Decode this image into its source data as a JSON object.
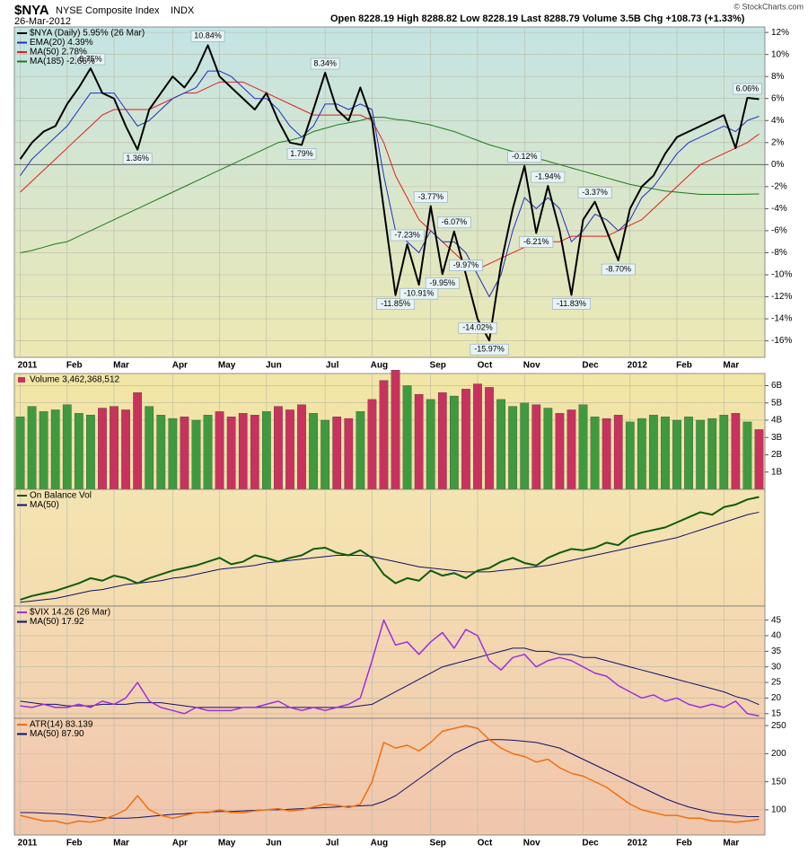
{
  "header": {
    "symbol": "$NYA",
    "name": "NYSE Composite Index",
    "exchange": "INDX",
    "date": "26-Mar-2012",
    "quote": "Open 8228.19  High 8288.82  Low 8228.19  Last 8288.79  Volume 3.5B  Chg +108.73 (+1.33%)",
    "source": "© StockCharts.com"
  },
  "chart_data": [
    {
      "type": "line",
      "grid": true,
      "zero_line": true,
      "legend": "upper left",
      "categories": [
        "2011",
        null,
        null,
        null,
        "Feb",
        null,
        null,
        null,
        "Mar",
        null,
        null,
        null,
        null,
        "Apr",
        null,
        null,
        null,
        "May",
        null,
        null,
        null,
        "Jun",
        null,
        null,
        null,
        null,
        "Jul",
        null,
        null,
        null,
        "Aug",
        null,
        null,
        null,
        null,
        "Sep",
        null,
        null,
        null,
        "Oct",
        null,
        null,
        null,
        "Nov",
        null,
        null,
        null,
        null,
        "Dec",
        null,
        null,
        null,
        "2012",
        null,
        null,
        null,
        "Feb",
        null,
        null,
        null,
        "Mar",
        null,
        null,
        null
      ],
      "ylim": [
        -17.5,
        12.5
      ],
      "yticks": [
        {
          "value": -16,
          "label": "-16%"
        },
        {
          "value": -14,
          "label": "-14%"
        },
        {
          "value": -12,
          "label": "-12%"
        },
        {
          "value": -10,
          "label": "-10%"
        },
        {
          "value": -8,
          "label": "-8%"
        },
        {
          "value": -6,
          "label": "-6%"
        },
        {
          "value": -4,
          "label": "-4%"
        },
        {
          "value": -2,
          "label": "-2%"
        },
        {
          "value": 0,
          "label": "0%"
        },
        {
          "value": 2,
          "label": "2%"
        },
        {
          "value": 4,
          "label": "4%"
        },
        {
          "value": 6,
          "label": "6%"
        },
        {
          "value": 8,
          "label": "8%"
        },
        {
          "value": 10,
          "label": "10%"
        },
        {
          "value": 12,
          "label": "12%"
        }
      ],
      "series": [
        {
          "name": "$NYA (Daily) 5.95% (26 Mar)",
          "color": "#000000",
          "width": 2,
          "values": [
            0.5,
            2,
            3,
            3.5,
            5.5,
            7,
            8.75,
            6.5,
            6,
            3.5,
            1.36,
            5,
            6.5,
            8,
            7,
            8.5,
            10.84,
            8,
            7,
            6,
            5,
            6.5,
            4,
            2,
            1.79,
            5,
            8.34,
            5,
            4,
            7,
            4,
            -4,
            -11.85,
            -7.23,
            -10.91,
            -3.77,
            -9.95,
            -6.07,
            -9.97,
            -14.02,
            -15.97,
            -9,
            -4,
            -0.12,
            -6.21,
            -1.94,
            -6,
            -11.83,
            -5,
            -3.37,
            -6,
            -8.7,
            -4,
            -2,
            -1,
            1,
            2.5,
            3,
            3.5,
            4,
            4.5,
            1.5,
            6.06,
            5.95
          ],
          "value_labels": [
            null,
            null,
            null,
            null,
            null,
            null,
            "8.75%",
            null,
            null,
            null,
            "1.36%",
            null,
            null,
            null,
            null,
            null,
            "10.84%",
            null,
            null,
            null,
            null,
            null,
            null,
            null,
            "1.79%",
            null,
            "8.34%",
            null,
            null,
            null,
            null,
            null,
            "-11.85%",
            "-7.23%",
            "-10.91%",
            "-3.77%",
            "-9.95%",
            "-6.07%",
            "-9.97%",
            "-14.02%",
            "-15.97%",
            null,
            null,
            "-0.12%",
            "-6.21%",
            "-1.94%",
            null,
            "-11.83%",
            null,
            "-3.37%",
            null,
            "-8.70%",
            null,
            null,
            null,
            null,
            null,
            null,
            null,
            null,
            null,
            null,
            "6.06%",
            null
          ]
        },
        {
          "name": "EMA(20) 4.39%",
          "color": "#1f2fbf",
          "width": 1,
          "values": [
            -1,
            0.5,
            1.5,
            2.5,
            3.5,
            5,
            6.5,
            6.5,
            6.5,
            5,
            3.5,
            4,
            5,
            6,
            6.5,
            7,
            8.5,
            8.5,
            8,
            7,
            6,
            6,
            5,
            3.5,
            2.5,
            3.5,
            5.5,
            5.5,
            5,
            5.5,
            5,
            -1,
            -6,
            -7,
            -8,
            -6,
            -7,
            -7,
            -8,
            -10,
            -12,
            -10,
            -6,
            -3,
            -4,
            -3,
            -4,
            -7,
            -6,
            -4.5,
            -5,
            -6,
            -5,
            -3,
            -2,
            -0.5,
            1,
            2,
            2.5,
            3,
            3.5,
            3,
            4,
            4.39
          ]
        },
        {
          "name": "MA(50) 2.78%",
          "color": "#e0201c",
          "width": 1,
          "values": [
            -2.5,
            -1.5,
            -0.5,
            0.5,
            1.5,
            2.5,
            3.5,
            4.5,
            5,
            5,
            5,
            5,
            5.5,
            6,
            6.5,
            6.5,
            7,
            7.5,
            7.5,
            7.5,
            7,
            6.5,
            6,
            5.5,
            5,
            4.5,
            4.5,
            4.5,
            4.5,
            4.5,
            4,
            2,
            -1,
            -3,
            -5,
            -6,
            -7,
            -8,
            -9,
            -9.5,
            -9,
            -8.5,
            -8,
            -7.5,
            -7,
            -7,
            -7,
            -6.5,
            -6.5,
            -6.5,
            -6.5,
            -6,
            -5.5,
            -5,
            -4,
            -3,
            -2,
            -1,
            0,
            0.5,
            1,
            1.5,
            2,
            2.78
          ]
        },
        {
          "name": "MA(185) -2.66%",
          "color": "#1a7a1a",
          "width": 1,
          "values": [
            -8,
            -7.8,
            -7.5,
            -7.2,
            -7,
            -6.5,
            -6,
            -5.5,
            -5,
            -4.5,
            -4,
            -3.5,
            -3,
            -2.5,
            -2,
            -1.5,
            -1,
            -0.5,
            0,
            0.5,
            1,
            1.5,
            2,
            2.2,
            2.5,
            3,
            3.3,
            3.6,
            3.8,
            4,
            4.3,
            4.3,
            4.1,
            4,
            3.8,
            3.6,
            3.3,
            3,
            2.6,
            2.2,
            1.8,
            1.5,
            1.2,
            0.9,
            0.6,
            0.3,
            0,
            -0.3,
            -0.6,
            -0.9,
            -1.2,
            -1.5,
            -1.8,
            -2,
            -2.2,
            -2.4,
            -2.5,
            -2.6,
            -2.7,
            -2.7,
            -2.7,
            -2.7,
            -2.68,
            -2.66
          ]
        }
      ]
    },
    {
      "type": "bar",
      "title": "Volume 3,462,368,512",
      "grid": true,
      "up_color": "#3f9a3f",
      "down_color": "#c8325f",
      "ylim": [
        0,
        6.7
      ],
      "yticks": [
        {
          "value": 1,
          "label": "1B"
        },
        {
          "value": 2,
          "label": "2B"
        },
        {
          "value": 3,
          "label": "3B"
        },
        {
          "value": 4,
          "label": "4B"
        },
        {
          "value": 5,
          "label": "5B"
        },
        {
          "value": 6,
          "label": "6B"
        }
      ],
      "values": [
        4.2,
        4.8,
        4.5,
        4.6,
        4.9,
        4.4,
        4.3,
        4.7,
        4.8,
        4.6,
        5.6,
        4.8,
        4.3,
        4.1,
        4.2,
        4.0,
        4.3,
        4.5,
        4.2,
        4.4,
        4.3,
        4.5,
        4.8,
        4.6,
        4.9,
        4.4,
        4.0,
        4.2,
        4.1,
        4.5,
        5.2,
        6.3,
        6.9,
        6.0,
        5.5,
        5.2,
        5.6,
        5.4,
        5.8,
        6.1,
        5.9,
        5.2,
        4.8,
        5.0,
        4.9,
        4.7,
        4.4,
        4.6,
        4.9,
        4.2,
        4.1,
        4.3,
        3.9,
        4.1,
        4.3,
        4.2,
        4.0,
        4.2,
        4.0,
        4.1,
        4.3,
        4.4,
        3.9,
        3.46
      ]
    },
    {
      "type": "line",
      "grid": true,
      "legend": "upper left",
      "ylim": [
        0,
        92
      ],
      "series": [
        {
          "name": "On Balance Vol",
          "color": "#0d5c0d",
          "width": 2,
          "values": [
            5,
            8,
            10,
            12,
            15,
            18,
            22,
            20,
            24,
            22,
            18,
            22,
            25,
            28,
            30,
            32,
            35,
            38,
            33,
            35,
            40,
            38,
            35,
            38,
            40,
            45,
            46,
            42,
            40,
            44,
            38,
            25,
            18,
            22,
            20,
            28,
            24,
            26,
            22,
            28,
            30,
            35,
            38,
            34,
            32,
            38,
            42,
            45,
            44,
            46,
            50,
            48,
            55,
            58,
            60,
            62,
            66,
            70,
            74,
            72,
            78,
            80,
            84,
            86
          ]
        },
        {
          "name": "MA(50)",
          "color": "#10106e",
          "width": 1,
          "values": [
            3,
            4,
            5,
            6,
            8,
            10,
            12,
            13,
            15,
            17,
            18,
            19,
            20,
            22,
            23,
            25,
            27,
            29,
            30,
            31,
            32,
            34,
            35,
            36,
            37,
            38,
            39,
            40,
            40,
            40,
            39,
            37,
            35,
            33,
            31,
            30,
            29,
            28,
            27,
            27,
            27,
            28,
            29,
            30,
            31,
            32,
            34,
            36,
            38,
            40,
            42,
            44,
            46,
            48,
            50,
            52,
            54,
            57,
            60,
            63,
            66,
            69,
            72,
            74
          ]
        }
      ]
    },
    {
      "type": "line",
      "grid": true,
      "legend": "upper left",
      "ylim": [
        13.5,
        49.5
      ],
      "yticks": [
        15,
        20,
        25,
        30,
        35,
        40,
        45
      ],
      "series": [
        {
          "name": "$VIX 14.26 (26 Mar)",
          "color": "#9b30e0",
          "width": 1.5,
          "values": [
            17.5,
            17,
            18,
            17,
            17,
            18,
            17,
            19,
            18,
            20,
            25,
            19,
            17,
            16,
            15,
            17,
            16,
            16,
            16,
            17,
            17,
            18,
            19,
            17,
            16,
            17,
            16,
            17,
            18,
            20,
            32,
            45,
            37,
            38,
            34,
            38,
            41,
            36,
            42,
            40,
            32,
            29,
            33,
            34,
            30,
            32,
            33,
            32,
            30,
            28,
            27,
            24,
            22,
            20,
            21,
            19,
            20,
            18,
            17,
            18,
            17,
            19,
            15,
            14.26
          ]
        },
        {
          "name": "MA(50) 17.92",
          "color": "#10106e",
          "width": 1,
          "values": [
            19,
            18.5,
            18,
            18,
            17.5,
            17.5,
            17.5,
            18,
            18,
            18,
            18.5,
            18.5,
            18.5,
            18,
            17.5,
            17,
            17,
            17,
            17,
            17,
            17,
            17,
            17,
            17,
            17,
            17,
            17,
            17,
            17,
            17.5,
            18,
            20,
            22,
            24,
            26,
            28,
            30,
            31,
            32,
            33,
            34,
            35,
            36,
            36,
            35,
            35,
            34,
            34,
            33,
            33,
            32,
            31,
            30,
            29,
            28,
            27,
            26,
            25,
            24,
            23,
            22,
            20.5,
            19.5,
            17.92
          ]
        }
      ]
    },
    {
      "type": "line",
      "grid": true,
      "legend": "upper left",
      "ylim": [
        55,
        263
      ],
      "yticks": [
        100,
        150,
        200,
        250
      ],
      "categories": [
        "2011",
        null,
        null,
        null,
        "Feb",
        null,
        null,
        null,
        "Mar",
        null,
        null,
        null,
        null,
        "Apr",
        null,
        null,
        null,
        "May",
        null,
        null,
        null,
        "Jun",
        null,
        null,
        null,
        null,
        "Jul",
        null,
        null,
        null,
        "Aug",
        null,
        null,
        null,
        null,
        "Sep",
        null,
        null,
        null,
        "Oct",
        null,
        null,
        null,
        "Nov",
        null,
        null,
        null,
        null,
        "Dec",
        null,
        null,
        null,
        "2012",
        null,
        null,
        null,
        "Feb",
        null,
        null,
        null,
        "Mar",
        null,
        null,
        null
      ],
      "series": [
        {
          "name": "ATR(14) 83.139",
          "color": "#f07010",
          "width": 1.5,
          "values": [
            90,
            85,
            80,
            80,
            75,
            80,
            78,
            82,
            90,
            100,
            125,
            100,
            90,
            85,
            90,
            95,
            95,
            100,
            95,
            95,
            98,
            100,
            102,
            98,
            100,
            105,
            110,
            108,
            104,
            110,
            150,
            220,
            210,
            215,
            205,
            220,
            240,
            245,
            250,
            245,
            225,
            210,
            200,
            195,
            185,
            190,
            175,
            165,
            160,
            150,
            140,
            125,
            110,
            100,
            95,
            90,
            90,
            85,
            85,
            80,
            80,
            78,
            80,
            83.139
          ]
        },
        {
          "name": "MA(50) 87.90",
          "color": "#10106e",
          "width": 1,
          "values": [
            95,
            95,
            94,
            93,
            92,
            90,
            88,
            86,
            85,
            85,
            86,
            88,
            90,
            92,
            93,
            95,
            96,
            97,
            97,
            98,
            99,
            100,
            100,
            101,
            102,
            103,
            104,
            105,
            106,
            107,
            108,
            115,
            125,
            140,
            155,
            170,
            185,
            200,
            210,
            220,
            225,
            225,
            224,
            222,
            220,
            215,
            210,
            200,
            190,
            180,
            170,
            160,
            150,
            140,
            130,
            120,
            112,
            105,
            100,
            95,
            92,
            90,
            88,
            87.9
          ]
        }
      ]
    }
  ]
}
